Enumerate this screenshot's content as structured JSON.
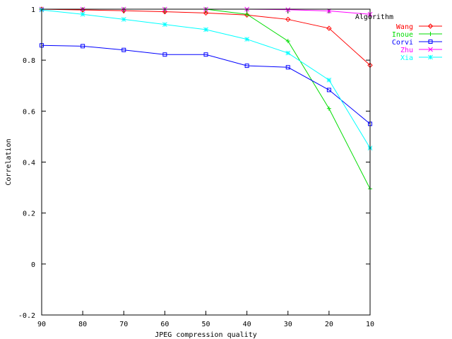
{
  "chart_data": {
    "type": "line",
    "xlabel": "JPEG compression quality",
    "ylabel": "Correlation",
    "x": [
      90,
      80,
      70,
      60,
      50,
      40,
      30,
      20,
      10
    ],
    "xlim": [
      90,
      10
    ],
    "ylim": [
      -0.2,
      1
    ],
    "x_ticks": [
      "90",
      "80",
      "70",
      "60",
      "50",
      "40",
      "30",
      "20",
      "10"
    ],
    "y_ticks": [
      "-0.2",
      "0",
      "0.2",
      "0.4",
      "0.6",
      "0.8",
      "1"
    ],
    "x_tick_values": [
      90,
      80,
      70,
      60,
      50,
      40,
      30,
      20,
      10
    ],
    "y_tick_values": [
      -0.2,
      0,
      0.2,
      0.4,
      0.6,
      0.8,
      1
    ],
    "grid": false,
    "legend_title": "Algorithm",
    "legend_position": "top-right",
    "series": [
      {
        "name": "Wang",
        "color": "#ff0000",
        "marker": "diamond",
        "values": [
          1.0,
          0.997,
          0.994,
          0.99,
          0.985,
          0.977,
          0.96,
          0.925,
          0.78
        ]
      },
      {
        "name": "Inoue",
        "color": "#00dd00",
        "marker": "plus",
        "values": [
          1.0,
          1.0,
          1.0,
          1.0,
          1.0,
          0.98,
          0.875,
          0.61,
          0.295
        ]
      },
      {
        "name": "Corvi",
        "color": "#0000ff",
        "marker": "square",
        "values": [
          0.858,
          0.855,
          0.84,
          0.822,
          0.822,
          0.778,
          0.772,
          0.683,
          0.55
        ]
      },
      {
        "name": "Zhu",
        "color": "#ff00ff",
        "marker": "x",
        "values": [
          1.0,
          1.0,
          1.0,
          1.0,
          1.0,
          1.0,
          0.998,
          0.993,
          0.98
        ]
      },
      {
        "name": "Xia",
        "color": "#00ffff",
        "marker": "star",
        "values": [
          0.997,
          0.98,
          0.96,
          0.94,
          0.92,
          0.882,
          0.828,
          0.722,
          0.455
        ]
      }
    ]
  }
}
